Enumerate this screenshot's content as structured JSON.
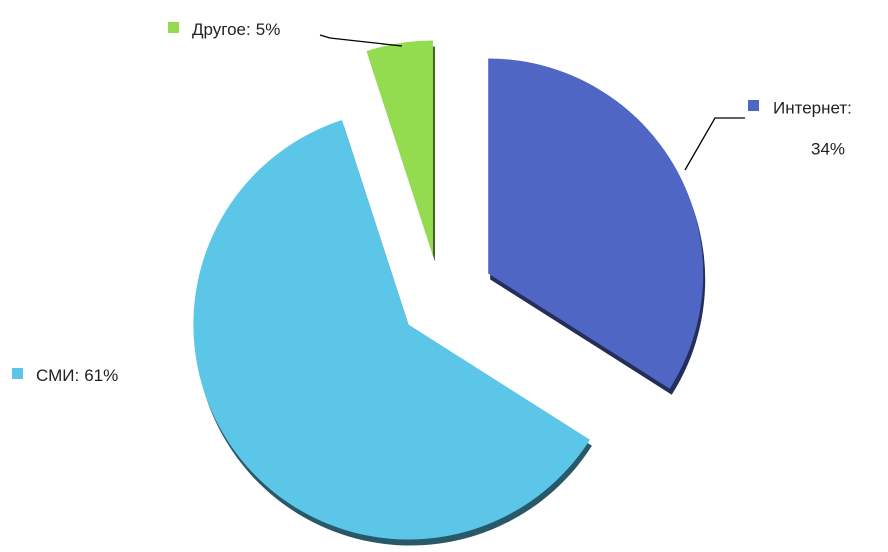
{
  "chart_data": {
    "type": "pie",
    "categories": [
      "Интернет:",
      "СМИ:",
      "Другое:"
    ],
    "values": [
      34,
      61,
      5
    ],
    "value_labels": [
      "34%",
      "61%",
      "5%"
    ],
    "colors": [
      "#4f66c4",
      "#5bc6e8",
      "#93dc4f"
    ]
  }
}
